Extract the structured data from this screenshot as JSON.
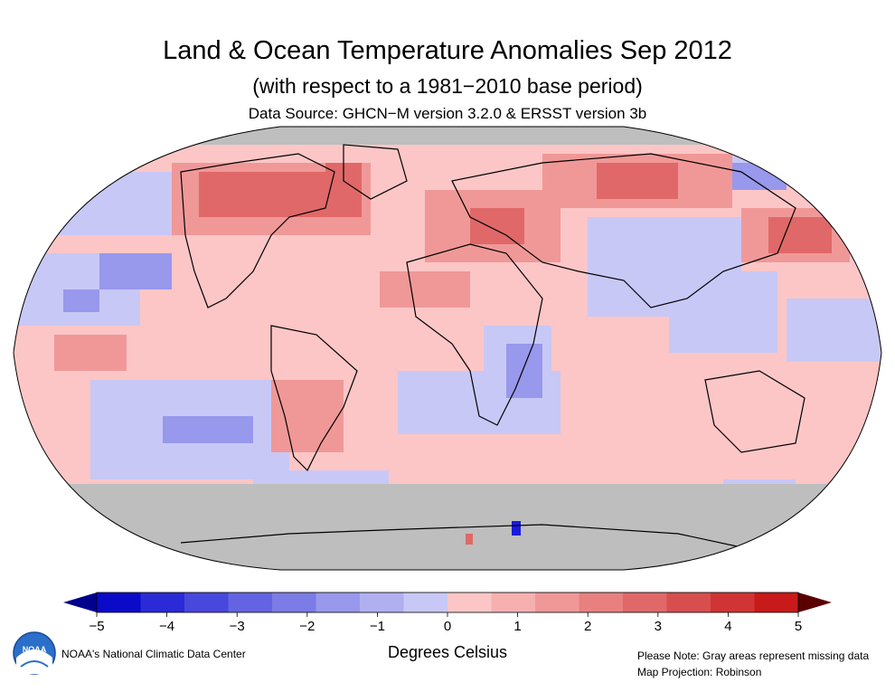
{
  "header": {
    "title": "Land & Ocean Temperature Anomalies Sep 2012",
    "subtitle": "(with respect to a 1981−2010 base period)",
    "source": "Data Source: GHCN−M version 3.2.0 & ERSST version 3b"
  },
  "map": {
    "projection": "Robinson",
    "missing_color": "#bebebe",
    "coastline_color": "#000000"
  },
  "colorbar": {
    "tick_labels": [
      "−5",
      "−4",
      "−3",
      "−2",
      "−1",
      "0",
      "1",
      "2",
      "3",
      "4",
      "5"
    ],
    "units": "Degrees Celsius",
    "colors": [
      "#0a0ac8",
      "#2a2ad6",
      "#4848dc",
      "#6464e2",
      "#7c7ce6",
      "#9898ec",
      "#b0b0f0",
      "#c8c8f6",
      "#fcc6c6",
      "#f6b0b0",
      "#f09898",
      "#e88080",
      "#e06868",
      "#d84e4e",
      "#d03434",
      "#c81a1a"
    ],
    "low_arrow_color": "#00008c",
    "high_arrow_color": "#5a0000"
  },
  "footer": {
    "credit": "NOAA's National Climatic Data Center",
    "note_line1": "Please Note: Gray areas represent missing data",
    "note_line2": "Map Projection: Robinson"
  }
}
